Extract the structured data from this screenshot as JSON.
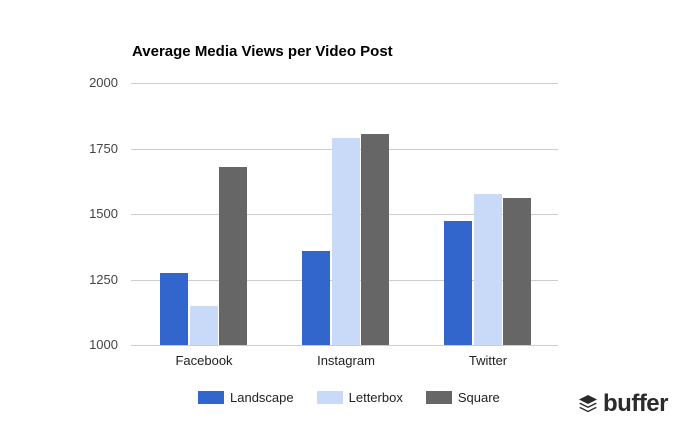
{
  "chart_data": {
    "type": "bar",
    "title": "Average Media Views per Video Post",
    "xlabel": "",
    "ylabel": "",
    "ylim": [
      1000,
      2000
    ],
    "yticks": [
      1000,
      1250,
      1500,
      1750,
      2000
    ],
    "grid": true,
    "legend_position": "bottom",
    "categories": [
      "Facebook",
      "Instagram",
      "Twitter"
    ],
    "series": [
      {
        "name": "Landscape",
        "color": "#3366cc",
        "values": [
          1275,
          1360,
          1475
        ]
      },
      {
        "name": "Letterbox",
        "color": "#c9daf8",
        "values": [
          1150,
          1790,
          1575
        ]
      },
      {
        "name": "Square",
        "color": "#666666",
        "values": [
          1680,
          1805,
          1560
        ]
      }
    ]
  },
  "ytick_labels": [
    "2000",
    "1750",
    "1500",
    "1250",
    "1000"
  ],
  "logo": {
    "text": "buffer",
    "icon": "stack-layers-icon"
  }
}
